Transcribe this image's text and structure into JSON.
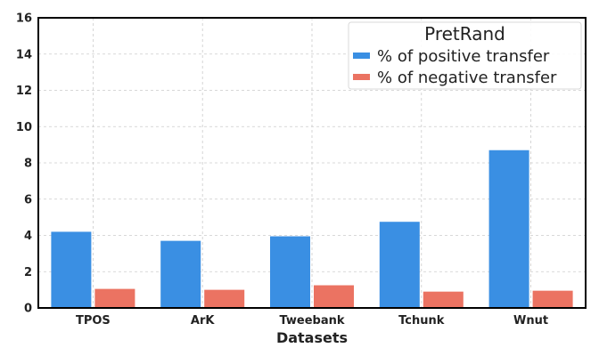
{
  "chart_data": {
    "type": "bar",
    "categories": [
      "TPOS",
      "ArK",
      "Tweebank",
      "Tchunk",
      "Wnut"
    ],
    "series": [
      {
        "name": "% of positive transfer",
        "color": "#3a8fe3",
        "values": [
          4.2,
          3.7,
          3.95,
          4.75,
          8.7
        ]
      },
      {
        "name": "% of negative transfer",
        "color": "#eb7362",
        "values": [
          1.05,
          1.0,
          1.25,
          0.9,
          0.95
        ]
      }
    ],
    "xlabel": "Datasets",
    "ylabel": "",
    "ylim": [
      0,
      16
    ],
    "yticks": [
      0,
      2,
      4,
      6,
      8,
      10,
      12,
      14,
      16
    ],
    "legend": {
      "title": "PretRand",
      "placement": "top-right"
    },
    "grid": true
  }
}
